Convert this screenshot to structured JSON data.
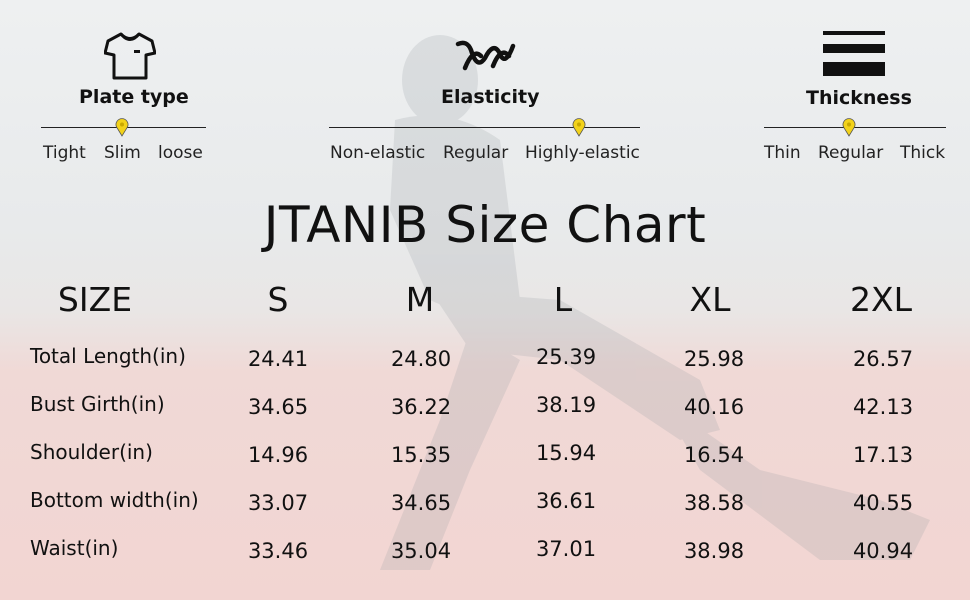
{
  "attributes": {
    "plate_type": {
      "icon": "tshirt-icon",
      "title": "Plate type",
      "options": [
        "Tight",
        "Slim",
        "loose"
      ],
      "selected": "Slim"
    },
    "elasticity": {
      "icon": "elasticity-wave-icon",
      "title": "Elasticity",
      "options": [
        "Non-elastic",
        "Regular",
        "Highly-elastic"
      ],
      "selected": "Highly-elastic"
    },
    "thickness": {
      "icon": "thickness-bars-icon",
      "title": "Thickness",
      "options": [
        "Thin",
        "Regular",
        "Thick"
      ],
      "selected": "Regular"
    },
    "marker_color": "#f2d21a"
  },
  "size_chart": {
    "title": "JTANIB Size Chart",
    "header_label": "SIZE",
    "sizes": [
      "S",
      "M",
      "L",
      "XL",
      "2XL"
    ],
    "rows": [
      {
        "label": "Total Length(in)",
        "values": [
          "24.41",
          "24.80",
          "25.39",
          "25.98",
          "26.57"
        ]
      },
      {
        "label": "Bust Girth(in)",
        "values": [
          "34.65",
          "36.22",
          "38.19",
          "40.16",
          "42.13"
        ]
      },
      {
        "label": "Shoulder(in)",
        "values": [
          "14.96",
          "15.35",
          "15.94",
          "16.54",
          "17.13"
        ]
      },
      {
        "label": "Bottom width(in)",
        "values": [
          "33.07",
          "34.65",
          "36.61",
          "38.58",
          "40.55"
        ]
      },
      {
        "label": "Waist(in)",
        "values": [
          "33.46",
          "35.04",
          "37.01",
          "38.98",
          "40.94"
        ]
      }
    ]
  }
}
